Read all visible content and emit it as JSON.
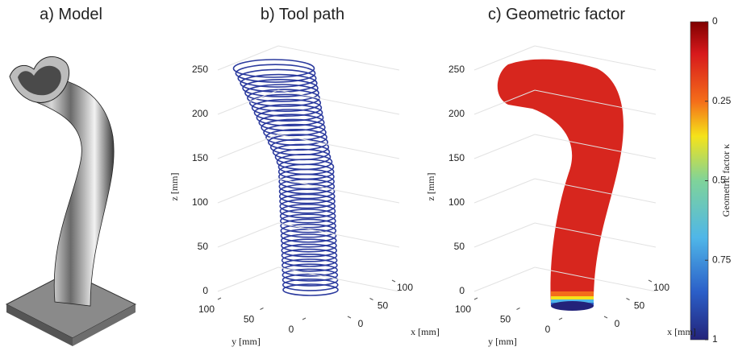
{
  "panels": [
    {
      "title": "a) Model"
    },
    {
      "title": "b) Tool path",
      "z_label": "z [mm]",
      "y_label": "y [mm]",
      "x_label": "x [mm]",
      "zticks": [
        0,
        50,
        100,
        150,
        200,
        250
      ],
      "yticks": [
        100,
        50,
        0
      ],
      "xticks": [
        0,
        50,
        100
      ]
    },
    {
      "title": "c) Geometric factor",
      "z_label": "z [mm]",
      "y_label": "y [mm]",
      "x_label": "x [mm]",
      "zticks": [
        0,
        50,
        100,
        150,
        200,
        250
      ],
      "yticks": [
        100,
        50,
        0
      ],
      "xticks": [
        0,
        50,
        100
      ]
    }
  ],
  "colorbar": {
    "label": "Geometric factor κ",
    "ticks": [
      0,
      0.25,
      0.5,
      0.75,
      1
    ]
  }
}
